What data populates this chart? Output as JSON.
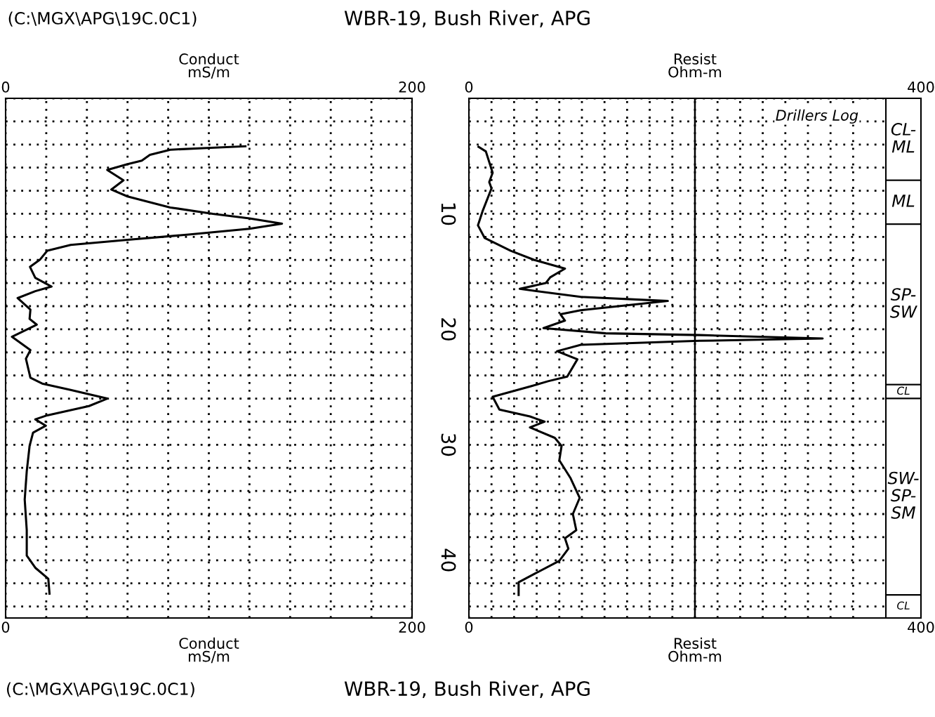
{
  "chart_data": [
    {
      "type": "line",
      "orientation": "horizontal",
      "title": "WBR-19, Bush River, APG",
      "xlabel": "Conduct\nmS/m",
      "x2label": "Conduct\nmS/m",
      "annotations": [
        "(C:\\MGX\\APG\\19C.0C1)",
        "(C:\\MGX\\APG\\19C.0C1)",
        "WBR-19, Bush River, APG"
      ],
      "series": [
        {
          "color": "#000000",
          "x": [
            4.15,
            4.3,
            4.45,
            4.9,
            5.4,
            5.7,
            6.2,
            7.1,
            7.9,
            8.5,
            9.45,
            10.0,
            10.4,
            10.85,
            11.3,
            11.8,
            12.25,
            12.7,
            13.2,
            13.95,
            14.6,
            15.55,
            16.3,
            16.7,
            17.3,
            18.3,
            19.1,
            19.6,
            20.65,
            21.8,
            22.55,
            24.2,
            24.7,
            25.25,
            26.0,
            26.65,
            27.45,
            27.8,
            28.35,
            28.95,
            30.1,
            32.3,
            34.75,
            37.4,
            39.6,
            40.65,
            41.6,
            42.9
          ],
          "values": [
            118,
            99,
            81,
            71,
            67,
            60,
            50,
            58,
            52,
            60,
            81,
            102,
            120,
            136,
            120,
            90,
            60,
            32,
            20.5,
            17,
            12,
            14.6,
            22.6,
            14.6,
            5.9,
            12.2,
            11.8,
            15.3,
            3.1,
            12.2,
            10,
            12.2,
            18,
            32,
            50,
            41,
            20.5,
            14.6,
            19.8,
            13.5,
            11.8,
            10.4,
            9.4,
            10.4,
            10.4,
            14.6,
            21,
            21.6
          ]
        }
      ],
      "xlim": [
        0,
        200
      ],
      "xticks": [
        0,
        {
          "value": 20,
          "label": null
        },
        {
          "value": 40,
          "label": null
        },
        {
          "value": 60,
          "label": null
        },
        {
          "value": 80,
          "label": null
        },
        {
          "value": 100,
          "label": null
        },
        {
          "value": 120,
          "label": null
        },
        {
          "value": 140,
          "label": null
        },
        {
          "value": 160,
          "label": null
        },
        {
          "value": 180,
          "label": null
        },
        200
      ],
      "x2lim": [
        0,
        200
      ],
      "x2ticks": [
        0,
        200
      ],
      "ylim": [
        45,
        0
      ],
      "yticks": [
        {
          "value": 0,
          "label": null
        },
        {
          "value": 2,
          "label": null
        },
        {
          "value": 4,
          "label": null
        },
        {
          "value": 6,
          "label": null
        },
        {
          "value": 8,
          "label": null
        },
        10,
        {
          "value": 12,
          "label": null
        },
        {
          "value": 14,
          "label": null
        },
        {
          "value": 16,
          "label": null
        },
        {
          "value": 18,
          "label": null
        },
        20,
        {
          "value": 22,
          "label": null
        },
        {
          "value": 24,
          "label": null
        },
        {
          "value": 26,
          "label": null
        },
        {
          "value": 28,
          "label": null
        },
        30,
        {
          "value": 32,
          "label": null
        },
        {
          "value": 34,
          "label": null
        },
        {
          "value": 36,
          "label": null
        },
        {
          "value": 38,
          "label": null
        },
        40,
        {
          "value": 42,
          "label": null
        },
        {
          "value": 44,
          "label": null
        }
      ],
      "grid": true,
      "line_style": "solid"
    },
    {
      "type": "line",
      "orientation": "horizontal",
      "xlabel": "Resist\nOhm-m",
      "x2label": "Resist\nOhm-m",
      "tick_labels": "x",
      "annotations": [
        "Drillers Log"
      ],
      "series": [
        {
          "color": "#000000",
          "x": [
            4.2,
            4.6,
            6.45,
            7.25,
            7.8,
            9.8,
            11.0,
            12.1,
            13.2,
            14.0,
            14.75,
            15.5,
            16.0,
            16.5,
            17.2,
            17.55,
            18.35,
            18.7,
            19.25,
            19.9,
            20.35,
            20.5,
            20.8,
            21.0,
            21.35,
            21.9,
            22.6,
            24.1,
            24.5,
            24.9,
            25.85,
            26.95,
            27.55,
            28.0,
            28.5,
            29.4,
            30.1,
            31.35,
            32.9,
            34.6,
            36.0,
            37.4,
            38.1,
            39.0,
            40.05,
            41.9,
            43.0
          ],
          "values": [
            8.5,
            15,
            21,
            18,
            20,
            12,
            8,
            14,
            37,
            58,
            85,
            72,
            68,
            45,
            99,
            176,
            99,
            81,
            85,
            66,
            121,
            204,
            313,
            204,
            99,
            78,
            96,
            87,
            70,
            56,
            21,
            27,
            54,
            67,
            54,
            76,
            82,
            80,
            90,
            98,
            92,
            95,
            85,
            88,
            80,
            44,
            44
          ]
        }
      ],
      "xlim": [
        0,
        400
      ],
      "xticks": [
        0,
        {
          "value": 20,
          "label": null
        },
        {
          "value": 40,
          "label": null
        },
        {
          "value": 60,
          "label": null
        },
        {
          "value": 80,
          "label": null
        },
        {
          "value": 100,
          "label": null
        },
        {
          "value": 120,
          "label": null
        },
        {
          "value": 140,
          "label": null
        },
        {
          "value": 160,
          "label": null
        },
        {
          "value": 180,
          "label": null
        },
        {
          "value": 200,
          "label": null
        },
        {
          "value": 220,
          "label": null
        },
        {
          "value": 240,
          "label": null
        },
        {
          "value": 260,
          "label": null
        },
        {
          "value": 280,
          "label": null
        },
        {
          "value": 300,
          "label": null
        },
        {
          "value": 320,
          "label": null
        },
        {
          "value": 340,
          "label": null
        },
        400
      ],
      "x2lim": [
        0,
        400
      ],
      "x2ticks": [
        0,
        400
      ],
      "ylim": [
        45,
        0
      ],
      "yticks": [
        {
          "value": 0,
          "label": null
        },
        {
          "value": 2,
          "label": null
        },
        {
          "value": 4,
          "label": null
        },
        {
          "value": 6,
          "label": null
        },
        {
          "value": 8,
          "label": null
        },
        {
          "value": 10,
          "label": null
        },
        {
          "value": 12,
          "label": null
        },
        {
          "value": 14,
          "label": null
        },
        {
          "value": 16,
          "label": null
        },
        {
          "value": 18,
          "label": null
        },
        {
          "value": 20,
          "label": null
        },
        {
          "value": 22,
          "label": null
        },
        {
          "value": 24,
          "label": null
        },
        {
          "value": 26,
          "label": null
        },
        {
          "value": 28,
          "label": null
        },
        {
          "value": 30,
          "label": null
        },
        {
          "value": 32,
          "label": null
        },
        {
          "value": 34,
          "label": null
        },
        {
          "value": 36,
          "label": null
        },
        {
          "value": 38,
          "label": null
        },
        {
          "value": 40,
          "label": null
        },
        {
          "value": 42,
          "label": null
        },
        {
          "value": 44,
          "label": null
        }
      ],
      "ref_lines": [
        {
          "axis": "x",
          "value": 200,
          "color": "#000000"
        }
      ],
      "bands": [
        {
          "axis": "y",
          "from": 0,
          "to": 7.1,
          "label": "CL-ML"
        },
        {
          "axis": "y",
          "from": 7.1,
          "to": 10.9,
          "label": "ML"
        },
        {
          "axis": "y",
          "from": 10.9,
          "to": 24.8,
          "label": "SP-SW"
        },
        {
          "axis": "y",
          "from": 24.8,
          "to": 26.0,
          "label": "CL"
        },
        {
          "axis": "y",
          "from": 26.0,
          "to": 43.0,
          "label": "SW-SP-SM"
        },
        {
          "axis": "y",
          "from": 43.0,
          "to": 45,
          "label": "CL"
        }
      ],
      "grid": true,
      "line_style": "solid"
    }
  ]
}
